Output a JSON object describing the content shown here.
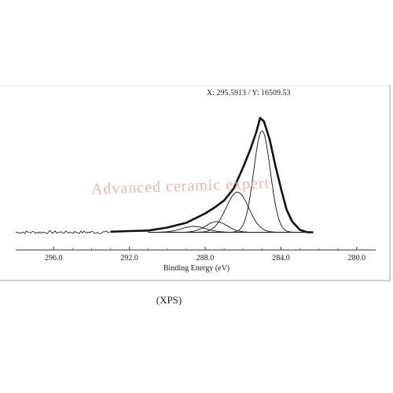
{
  "cursor_readout": "X: 295.5913 / Y: 16509.53",
  "watermark": "Advanced ceramic expert",
  "caption": "(XPS)",
  "colors": {
    "line": "#111111",
    "frame": "#cfcfcf",
    "watermark": "#e8a090"
  },
  "chart_data": {
    "type": "line",
    "title": "",
    "xlabel": "Binding Energy (eV)",
    "ylabel": "",
    "x_reversed": true,
    "xlim": [
      298,
      279
    ],
    "ylim": [
      0,
      1
    ],
    "xticks": [
      296.0,
      292.0,
      288.0,
      284.0,
      280.0
    ],
    "xtick_labels": [
      "296.0",
      "292.0",
      "288.0",
      "284.0",
      "280.0"
    ],
    "grid": false,
    "legend": "none",
    "background_y": 0.03,
    "series": [
      {
        "role": "envelope",
        "x": [
          298,
          293,
          292,
          291,
          290,
          289,
          288,
          287.5,
          287,
          286.5,
          286,
          285.6,
          285.3,
          285.1,
          284.9,
          284.6,
          284.3,
          284.0,
          283.7,
          283.4,
          283.0,
          282.6,
          282.3
        ],
        "y": [
          0.03,
          0.035,
          0.04,
          0.045,
          0.07,
          0.11,
          0.19,
          0.24,
          0.3,
          0.4,
          0.58,
          0.74,
          0.88,
          1.0,
          0.97,
          0.82,
          0.6,
          0.4,
          0.22,
          0.12,
          0.05,
          0.03,
          0.03
        ]
      },
      {
        "role": "component",
        "center": 285.0,
        "amplitude": 0.86,
        "width": 0.62
      },
      {
        "role": "component",
        "center": 286.3,
        "amplitude": 0.34,
        "width": 0.85
      },
      {
        "role": "component",
        "center": 287.4,
        "amplitude": 0.09,
        "width": 0.8
      },
      {
        "role": "component",
        "center": 288.6,
        "amplitude": 0.05,
        "width": 0.9
      }
    ]
  }
}
